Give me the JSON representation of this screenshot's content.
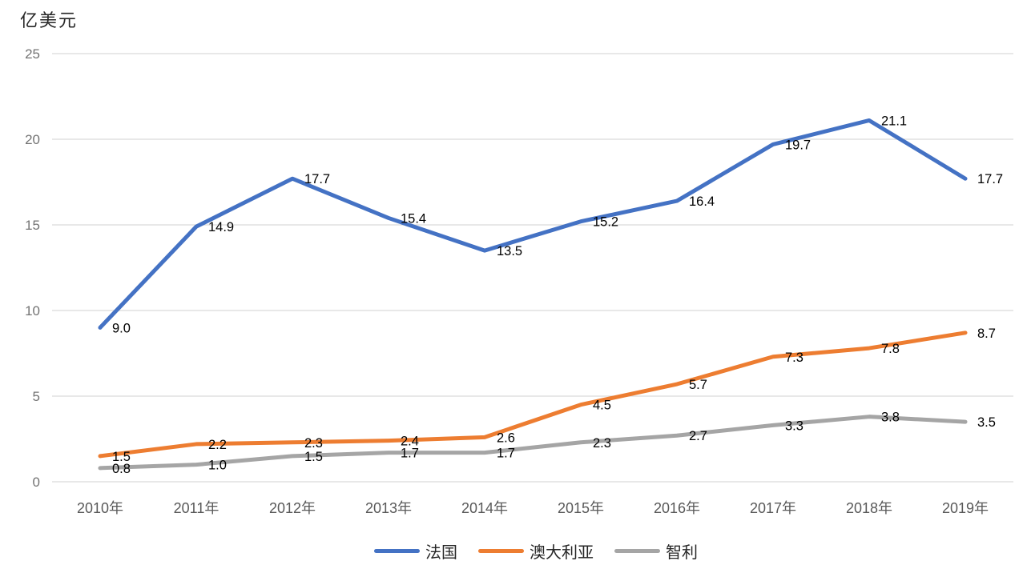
{
  "chart_data": {
    "type": "line",
    "ylabel": "亿美元",
    "categories": [
      "2010年",
      "2011年",
      "2012年",
      "2013年",
      "2014年",
      "2015年",
      "2016年",
      "2017年",
      "2018年",
      "2019年"
    ],
    "series": [
      {
        "name": "法国",
        "color": "#4472C4",
        "values": [
          9.0,
          14.9,
          17.7,
          15.4,
          13.5,
          15.2,
          16.4,
          19.7,
          21.1,
          17.7
        ]
      },
      {
        "name": "澳大利亚",
        "color": "#ED7D31",
        "values": [
          1.5,
          2.2,
          2.3,
          2.4,
          2.6,
          4.5,
          5.7,
          7.3,
          7.8,
          8.7
        ]
      },
      {
        "name": "智利",
        "color": "#A5A5A5",
        "values": [
          0.8,
          1.0,
          1.5,
          1.7,
          1.7,
          2.3,
          2.7,
          3.3,
          3.8,
          3.5
        ]
      }
    ],
    "y_ticks": [
      0,
      5,
      10,
      15,
      20,
      25
    ],
    "ylim": [
      0,
      25
    ],
    "grid": true,
    "data_labels": true,
    "legend_position": "bottom",
    "grid_color": "#D9D9D9",
    "y_tick_color": "#737373",
    "x_tick_color": "#595959",
    "data_label_color": "#000000"
  }
}
